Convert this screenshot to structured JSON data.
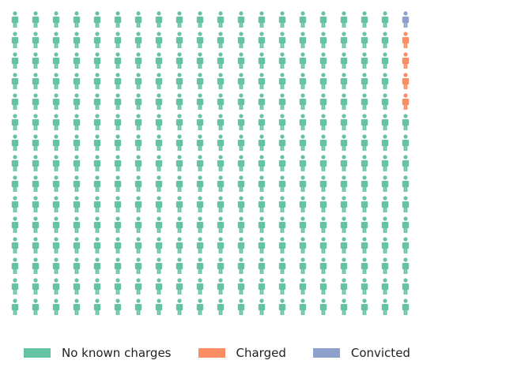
{
  "chart_data": {
    "type": "waffle-pictogram",
    "icon": "person-icon",
    "columns": 20,
    "rows": 15,
    "fill_order": "column-major, right-most column first, from top",
    "categories": [
      {
        "name": "Convicted",
        "count": 1,
        "color": "#8da0cb"
      },
      {
        "name": "Charged",
        "count": 4,
        "color": "#fc8d62"
      },
      {
        "name": "No known charges",
        "count": 295,
        "color": "#66c2a5"
      }
    ],
    "legend": {
      "placement": "bottom",
      "order": [
        "No known charges",
        "Charged",
        "Convicted"
      ]
    }
  }
}
